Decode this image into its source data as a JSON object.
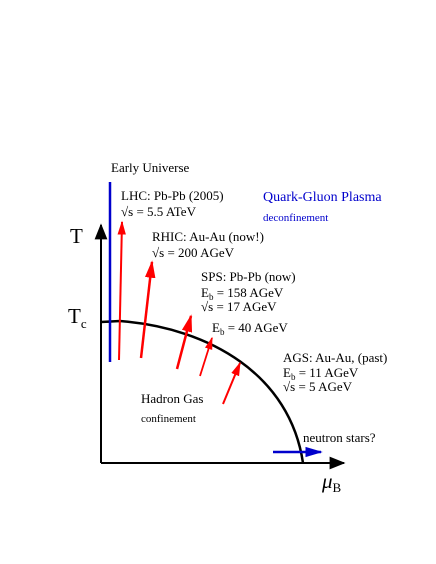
{
  "axes": {
    "y_label": "T",
    "tc_label_main": "T",
    "tc_label_sub": "c",
    "x_label_main": "μ",
    "x_label_sub": "B"
  },
  "regions": {
    "qgp_title": "Quark-Gluon Plasma",
    "qgp_subtitle": "deconfinement",
    "hadron_title": "Hadron Gas",
    "hadron_subtitle": "confinement",
    "early_universe": "Early Universe",
    "neutron_stars": "neutron stars?"
  },
  "experiments": {
    "lhc": {
      "title": "LHC: Pb-Pb (2005)",
      "energy_value": "= 5.5 ATeV"
    },
    "rhic": {
      "title": "RHIC: Au-Au (now!)",
      "energy_value": "= 200 AGeV"
    },
    "sps": {
      "title": "SPS: Pb-Pb (now)",
      "eb_value": "= 158 AGeV",
      "energy_value": "= 17 AGeV"
    },
    "sps40": {
      "eb_value": "= 40 AGeV"
    },
    "ags": {
      "title": "AGS: Au-Au, (past)",
      "eb_value": "= 11 AGeV",
      "energy_value": "= 5 AGeV"
    }
  },
  "symbols": {
    "sqrt_s": "√s",
    "e_main": "E",
    "e_sub": "b"
  },
  "colors": {
    "axis": "#000000",
    "boundary": "#000000",
    "trajectory": "#ff0000",
    "early_universe_line": "#0000cc",
    "qgp_text": "#0000cc",
    "neutron_star_line": "#0000cc"
  }
}
